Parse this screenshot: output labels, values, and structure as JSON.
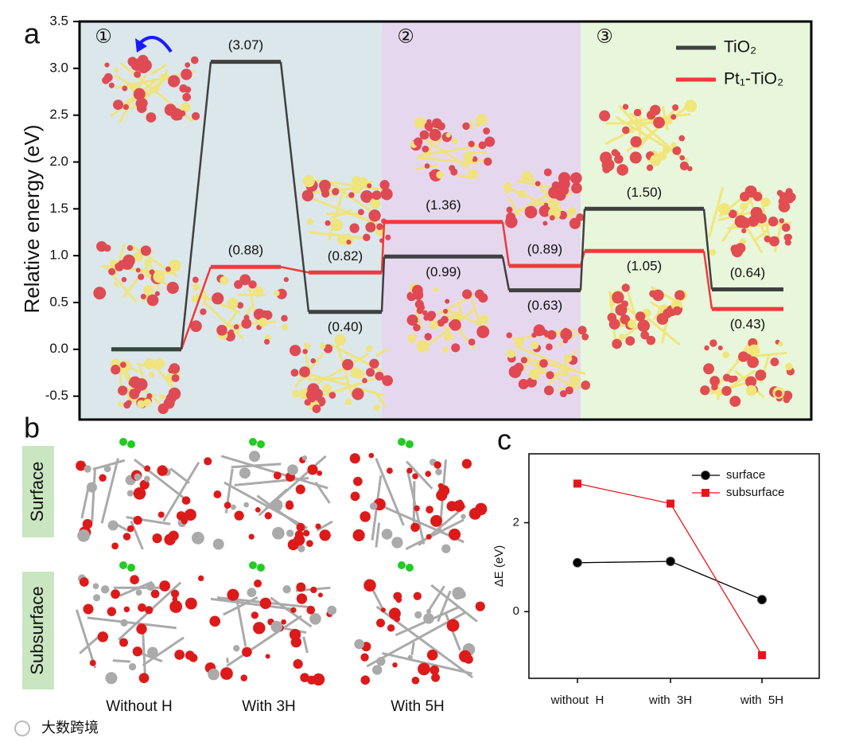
{
  "panel_labels": [
    "a",
    "b",
    "c"
  ],
  "chart_data": [
    {
      "type": "energy",
      "y_label": "Relative energy (eV)",
      "ylim": [
        -0.75,
        3.5
      ],
      "yticks": [
        -0.5,
        {
          "value": 0,
          "label": "0.0"
        },
        0.5,
        {
          "value": 1,
          "label": "1.0"
        },
        1.5,
        {
          "value": 2,
          "label": "2.0"
        },
        2.5,
        {
          "value": 3,
          "label": "3.0"
        },
        3.5
      ],
      "regions": [
        {
          "label": "①",
          "color": "#dbe7ea"
        },
        {
          "label": "②",
          "color": "#e5d8ee"
        },
        {
          "label": "③",
          "color": "#e8f6db"
        }
      ],
      "legend": "upper right",
      "series": [
        {
          "name": "TiO₂",
          "color": "#404040",
          "values": [
            0,
            3.07,
            0.4,
            0.99,
            0.63,
            1.5,
            0.64
          ],
          "value_labels": [
            null,
            "(3.07)",
            "(0.40)",
            "(0.99)",
            "(0.63)",
            "(1.50)",
            "(0.64)"
          ]
        },
        {
          "name": "Pt₁-TiO₂",
          "color": "#ee3b3b",
          "values": [
            0,
            0.88,
            0.82,
            1.36,
            0.89,
            1.05,
            0.43
          ],
          "value_labels": [
            null,
            "(0.88)",
            "(0.82)",
            "(1.36)",
            "(0.89)",
            "(1.05)",
            "(0.43)"
          ]
        }
      ]
    },
    {
      "type": "line",
      "y_label": "ΔE (eV)",
      "categories": [
        "without  H",
        "with  3H",
        "with  5H"
      ],
      "ylim": [
        -1.5,
        3.55
      ],
      "yticks": [
        0,
        2
      ],
      "legend": "upper right",
      "series": [
        {
          "name": "surface",
          "color": "#000000",
          "marker": "circle",
          "values": [
            1.1,
            1.13,
            0.27
          ]
        },
        {
          "name": "subsurface",
          "color": "#e8141c",
          "marker": "square",
          "values": [
            2.88,
            2.43,
            -0.98
          ]
        }
      ]
    }
  ],
  "panel_b": {
    "rows": [
      "Surface",
      "Subsurface"
    ],
    "columns": [
      "Without H",
      "With 3H",
      "With 5H"
    ]
  },
  "watermark": "大数跨境"
}
